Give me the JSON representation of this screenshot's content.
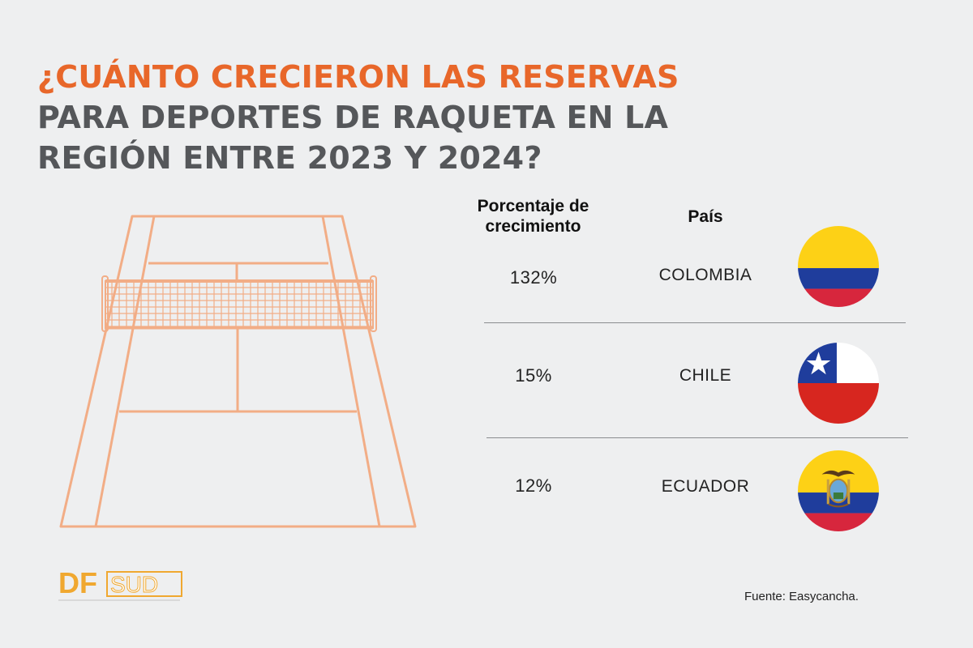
{
  "title": {
    "highlight": "¿CUÁNTO CRECIERON LAS RESERVAS",
    "rest": " PARA DEPORTES DE RAQUETA EN LA REGIÓN ENTRE 2023 Y 2024?"
  },
  "table": {
    "header_pct": "Porcentaje de crecimiento",
    "header_country": "País",
    "rows": [
      {
        "pct": "132%",
        "country": "COLOMBIA",
        "flag": "colombia-flag"
      },
      {
        "pct": "15%",
        "country": "CHILE",
        "flag": "chile-flag"
      },
      {
        "pct": "12%",
        "country": "ECUADOR",
        "flag": "ecuador-flag"
      }
    ]
  },
  "logo": {
    "brand_df": "DF",
    "brand_sud": "SUD"
  },
  "source": "Fuente:  Easycancha.",
  "colors": {
    "accent": "#e8672a",
    "title_gray": "#55575a",
    "court_line": "#f2ad86",
    "background": "#eeeff0"
  }
}
